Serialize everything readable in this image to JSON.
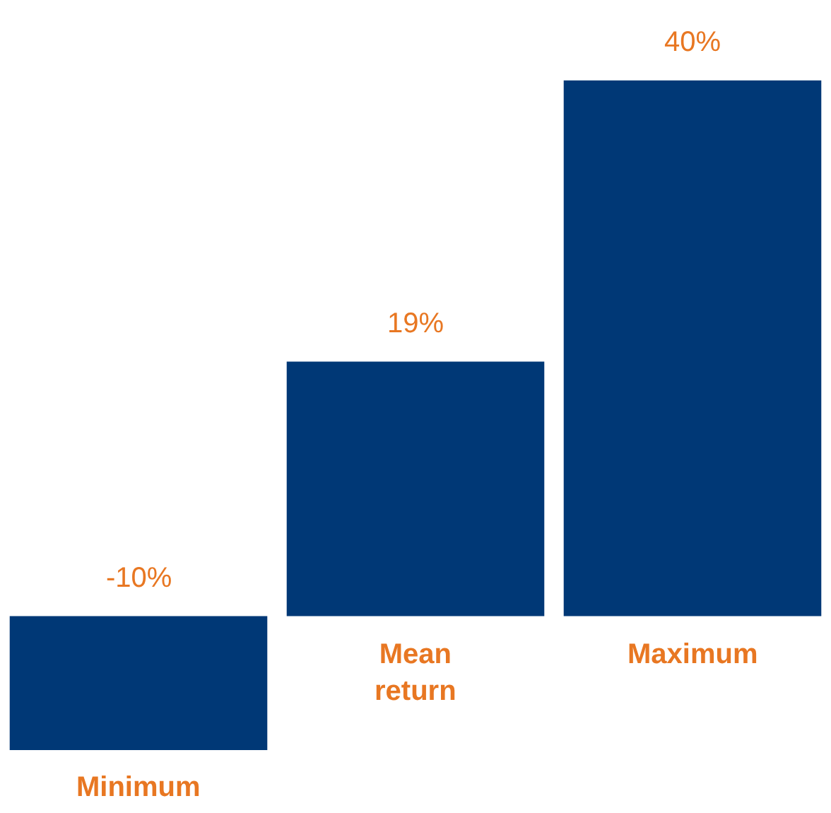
{
  "chart_data": {
    "type": "bar",
    "categories": [
      "Minimum",
      "Mean\nreturn",
      "Maximum"
    ],
    "values": [
      -10,
      19,
      40
    ],
    "value_labels": [
      "-10%",
      "19%",
      "40%"
    ],
    "color": "#003876",
    "ylim": [
      -14.7,
      46
    ]
  }
}
